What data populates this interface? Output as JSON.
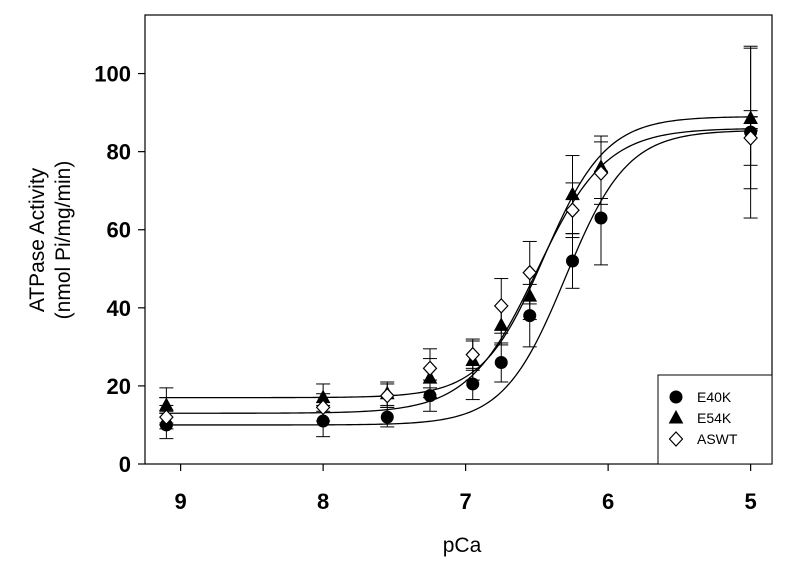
{
  "chart_data": {
    "type": "scatter",
    "xlabel": "pCa",
    "ylabel_line1": "ATPase Activity",
    "ylabel_line2": "(nmol Pi/mg/min)",
    "xlim": [
      9.25,
      4.85
    ],
    "ylim": [
      0,
      115
    ],
    "x_ticks": [
      9,
      8,
      7,
      6,
      5
    ],
    "y_ticks": [
      0,
      20,
      40,
      60,
      80,
      100
    ],
    "x_tick_labels": [
      "9",
      "8",
      "7",
      "6",
      "5"
    ],
    "y_tick_labels": [
      "0",
      "20",
      "40",
      "60",
      "80",
      "100"
    ],
    "grid": false,
    "legend_position": "bottom-right",
    "series": [
      {
        "name": "E40K",
        "marker": "circle",
        "x": [
          9.1,
          8.0,
          7.55,
          7.25,
          6.95,
          6.75,
          6.55,
          6.25,
          6.05,
          5.0
        ],
        "y": [
          10,
          11,
          12,
          17.5,
          20.5,
          26,
          38,
          52,
          63,
          85
        ],
        "err": [
          3.5,
          4,
          2.5,
          4,
          4,
          5,
          8,
          7,
          12,
          22
        ],
        "fit": {
          "bottom": 10,
          "top": 85.5,
          "pca50": 6.3,
          "hill": 2.0
        }
      },
      {
        "name": "E54K",
        "marker": "triangle",
        "x": [
          9.1,
          8.0,
          7.55,
          7.25,
          6.95,
          6.75,
          6.55,
          6.25,
          6.05,
          5.0
        ],
        "y": [
          15,
          17,
          18,
          22,
          26.5,
          35.5,
          43,
          69,
          76,
          88.5
        ],
        "err": [
          4.5,
          3.5,
          3,
          5,
          5,
          5,
          6,
          10,
          8,
          18
        ],
        "fit": {
          "bottom": 17,
          "top": 89,
          "pca50": 6.45,
          "hill": 2.0
        }
      },
      {
        "name": "ASWT",
        "marker": "diamond",
        "x": [
          9.1,
          8.0,
          7.55,
          7.25,
          6.95,
          6.75,
          6.55,
          6.25,
          6.05,
          5.0
        ],
        "y": [
          12,
          14.5,
          17.5,
          24.5,
          28,
          40.5,
          49,
          65,
          74.5,
          83.5
        ],
        "err": [
          3,
          3.5,
          3,
          5,
          4,
          7,
          8,
          7,
          8,
          7
        ],
        "fit": {
          "bottom": 13,
          "top": 86,
          "pca50": 6.5,
          "hill": 1.8
        }
      }
    ]
  }
}
